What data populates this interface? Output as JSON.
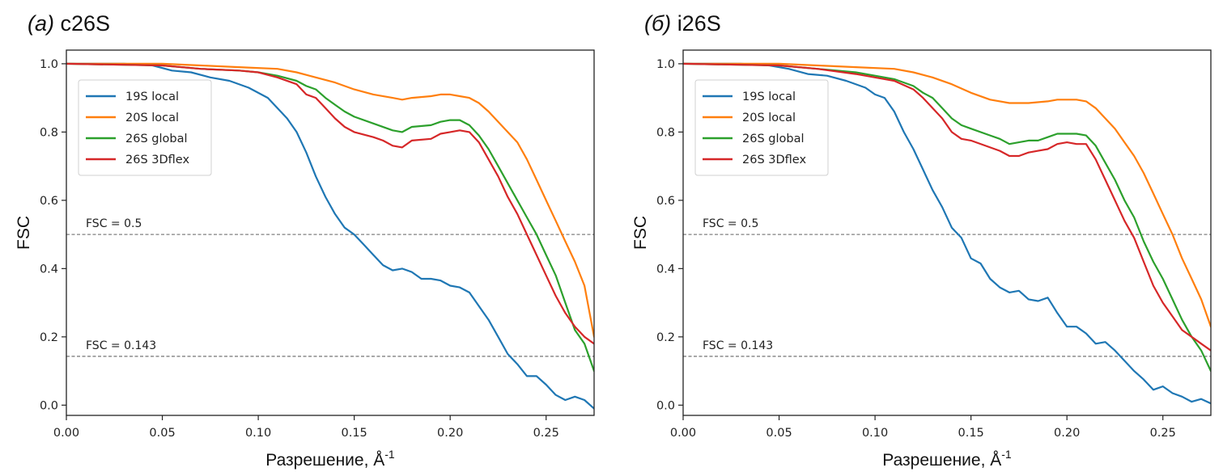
{
  "chart_data": [
    {
      "type": "line",
      "panel_letter": "(a)",
      "title": "c26S",
      "xlabel": "Разрешение, Å",
      "xlabel_superscript": "-1",
      "ylabel": "FSC",
      "xlim": [
        0,
        0.275
      ],
      "ylim": [
        -0.03,
        1.04
      ],
      "xticks": [
        "0.00",
        "0.05",
        "0.10",
        "0.15",
        "0.20",
        "0.25"
      ],
      "xtick_values": [
        0,
        0.05,
        0.1,
        0.15,
        0.2,
        0.25
      ],
      "yticks": [
        "0.0",
        "0.2",
        "0.4",
        "0.6",
        "0.8",
        "1.0"
      ],
      "ytick_values": [
        0,
        0.2,
        0.4,
        0.6,
        0.8,
        1.0
      ],
      "grid": false,
      "legend_position": "top-left",
      "reference_lines": [
        {
          "y": 0.5,
          "label": "FSC = 0.5"
        },
        {
          "y": 0.143,
          "label": "FSC = 0.143"
        }
      ],
      "series": [
        {
          "name": "19S local",
          "color": "#1f77b4",
          "x": [
            0,
            0.03,
            0.045,
            0.055,
            0.065,
            0.075,
            0.085,
            0.095,
            0.105,
            0.115,
            0.12,
            0.125,
            0.13,
            0.135,
            0.14,
            0.145,
            0.15,
            0.155,
            0.16,
            0.165,
            0.17,
            0.175,
            0.18,
            0.185,
            0.19,
            0.195,
            0.2,
            0.205,
            0.21,
            0.215,
            0.22,
            0.225,
            0.23,
            0.235,
            0.24,
            0.245,
            0.25,
            0.255,
            0.26,
            0.265,
            0.27,
            0.275
          ],
          "y": [
            1.0,
            1.0,
            0.995,
            0.98,
            0.975,
            0.96,
            0.95,
            0.93,
            0.9,
            0.84,
            0.8,
            0.74,
            0.67,
            0.61,
            0.56,
            0.52,
            0.5,
            0.47,
            0.44,
            0.41,
            0.395,
            0.4,
            0.39,
            0.37,
            0.37,
            0.365,
            0.35,
            0.345,
            0.33,
            0.29,
            0.25,
            0.2,
            0.15,
            0.12,
            0.085,
            0.085,
            0.06,
            0.03,
            0.015,
            0.025,
            0.015,
            -0.01
          ]
        },
        {
          "name": "20S local",
          "color": "#ff7f0e",
          "x": [
            0,
            0.05,
            0.07,
            0.09,
            0.11,
            0.12,
            0.13,
            0.14,
            0.15,
            0.16,
            0.17,
            0.175,
            0.18,
            0.19,
            0.195,
            0.2,
            0.205,
            0.21,
            0.215,
            0.22,
            0.225,
            0.23,
            0.235,
            0.24,
            0.245,
            0.25,
            0.255,
            0.26,
            0.265,
            0.27,
            0.275
          ],
          "y": [
            1.0,
            1.0,
            0.995,
            0.99,
            0.985,
            0.975,
            0.96,
            0.945,
            0.925,
            0.91,
            0.9,
            0.895,
            0.9,
            0.905,
            0.91,
            0.91,
            0.905,
            0.9,
            0.885,
            0.86,
            0.83,
            0.8,
            0.77,
            0.72,
            0.66,
            0.6,
            0.54,
            0.48,
            0.42,
            0.35,
            0.2
          ]
        },
        {
          "name": "26S global",
          "color": "#2ca02c",
          "x": [
            0,
            0.05,
            0.07,
            0.09,
            0.1,
            0.11,
            0.12,
            0.125,
            0.13,
            0.135,
            0.14,
            0.145,
            0.15,
            0.16,
            0.17,
            0.175,
            0.18,
            0.19,
            0.195,
            0.2,
            0.205,
            0.21,
            0.215,
            0.22,
            0.225,
            0.23,
            0.235,
            0.24,
            0.245,
            0.25,
            0.255,
            0.26,
            0.265,
            0.27,
            0.275
          ],
          "y": [
            1.0,
            0.995,
            0.985,
            0.98,
            0.975,
            0.965,
            0.95,
            0.935,
            0.925,
            0.9,
            0.88,
            0.86,
            0.845,
            0.825,
            0.805,
            0.8,
            0.815,
            0.82,
            0.83,
            0.835,
            0.835,
            0.82,
            0.79,
            0.75,
            0.7,
            0.65,
            0.6,
            0.55,
            0.5,
            0.44,
            0.38,
            0.3,
            0.22,
            0.18,
            0.1
          ]
        },
        {
          "name": "26S 3Dflex",
          "color": "#d62728",
          "x": [
            0,
            0.05,
            0.07,
            0.09,
            0.1,
            0.11,
            0.12,
            0.125,
            0.13,
            0.135,
            0.14,
            0.145,
            0.15,
            0.16,
            0.165,
            0.17,
            0.175,
            0.18,
            0.19,
            0.195,
            0.2,
            0.205,
            0.21,
            0.215,
            0.22,
            0.225,
            0.23,
            0.235,
            0.24,
            0.245,
            0.25,
            0.255,
            0.26,
            0.265,
            0.27,
            0.275
          ],
          "y": [
            1.0,
            0.995,
            0.985,
            0.98,
            0.975,
            0.96,
            0.94,
            0.91,
            0.9,
            0.87,
            0.84,
            0.815,
            0.8,
            0.785,
            0.775,
            0.76,
            0.755,
            0.775,
            0.78,
            0.795,
            0.8,
            0.805,
            0.8,
            0.77,
            0.72,
            0.67,
            0.61,
            0.56,
            0.5,
            0.44,
            0.38,
            0.32,
            0.27,
            0.23,
            0.2,
            0.18
          ]
        }
      ]
    },
    {
      "type": "line",
      "panel_letter": "(б)",
      "title": "i26S",
      "xlabel": "Разрешение, Å",
      "xlabel_superscript": "-1",
      "ylabel": "FSC",
      "xlim": [
        0,
        0.275
      ],
      "ylim": [
        -0.03,
        1.04
      ],
      "xticks": [
        "0.00",
        "0.05",
        "0.10",
        "0.15",
        "0.20",
        "0.25"
      ],
      "xtick_values": [
        0,
        0.05,
        0.1,
        0.15,
        0.2,
        0.25
      ],
      "yticks": [
        "0.0",
        "0.2",
        "0.4",
        "0.6",
        "0.8",
        "1.0"
      ],
      "ytick_values": [
        0,
        0.2,
        0.4,
        0.6,
        0.8,
        1.0
      ],
      "grid": false,
      "legend_position": "top-left",
      "reference_lines": [
        {
          "y": 0.5,
          "label": "FSC = 0.5"
        },
        {
          "y": 0.143,
          "label": "FSC = 0.143"
        }
      ],
      "series": [
        {
          "name": "19S local",
          "color": "#1f77b4",
          "x": [
            0,
            0.03,
            0.045,
            0.055,
            0.065,
            0.075,
            0.085,
            0.095,
            0.1,
            0.105,
            0.11,
            0.115,
            0.12,
            0.125,
            0.13,
            0.135,
            0.14,
            0.145,
            0.15,
            0.155,
            0.16,
            0.165,
            0.17,
            0.175,
            0.18,
            0.185,
            0.19,
            0.195,
            0.2,
            0.205,
            0.21,
            0.215,
            0.22,
            0.225,
            0.23,
            0.235,
            0.24,
            0.245,
            0.25,
            0.255,
            0.26,
            0.265,
            0.27,
            0.275
          ],
          "y": [
            1.0,
            1.0,
            0.995,
            0.985,
            0.97,
            0.965,
            0.95,
            0.93,
            0.91,
            0.9,
            0.86,
            0.8,
            0.75,
            0.69,
            0.63,
            0.58,
            0.52,
            0.49,
            0.43,
            0.415,
            0.37,
            0.345,
            0.33,
            0.335,
            0.31,
            0.305,
            0.315,
            0.27,
            0.23,
            0.23,
            0.21,
            0.18,
            0.185,
            0.16,
            0.13,
            0.1,
            0.075,
            0.045,
            0.055,
            0.035,
            0.025,
            0.01,
            0.018,
            0.005
          ]
        },
        {
          "name": "20S local",
          "color": "#ff7f0e",
          "x": [
            0,
            0.05,
            0.07,
            0.09,
            0.11,
            0.12,
            0.13,
            0.14,
            0.15,
            0.16,
            0.17,
            0.175,
            0.18,
            0.19,
            0.195,
            0.2,
            0.205,
            0.21,
            0.215,
            0.22,
            0.225,
            0.23,
            0.235,
            0.24,
            0.245,
            0.25,
            0.255,
            0.26,
            0.265,
            0.27,
            0.275
          ],
          "y": [
            1.0,
            1.0,
            0.995,
            0.99,
            0.985,
            0.975,
            0.96,
            0.94,
            0.915,
            0.895,
            0.885,
            0.885,
            0.885,
            0.89,
            0.895,
            0.895,
            0.895,
            0.89,
            0.87,
            0.84,
            0.81,
            0.77,
            0.73,
            0.68,
            0.62,
            0.56,
            0.5,
            0.43,
            0.37,
            0.31,
            0.23
          ]
        },
        {
          "name": "26S global",
          "color": "#2ca02c",
          "x": [
            0,
            0.05,
            0.07,
            0.09,
            0.1,
            0.11,
            0.12,
            0.125,
            0.13,
            0.135,
            0.14,
            0.145,
            0.15,
            0.16,
            0.165,
            0.17,
            0.175,
            0.18,
            0.185,
            0.19,
            0.195,
            0.2,
            0.205,
            0.21,
            0.215,
            0.22,
            0.225,
            0.23,
            0.235,
            0.24,
            0.245,
            0.25,
            0.255,
            0.26,
            0.265,
            0.27,
            0.275
          ],
          "y": [
            1.0,
            0.995,
            0.985,
            0.975,
            0.965,
            0.955,
            0.935,
            0.915,
            0.9,
            0.87,
            0.84,
            0.82,
            0.81,
            0.79,
            0.78,
            0.765,
            0.77,
            0.775,
            0.775,
            0.785,
            0.795,
            0.795,
            0.795,
            0.79,
            0.76,
            0.71,
            0.66,
            0.6,
            0.55,
            0.48,
            0.42,
            0.37,
            0.31,
            0.25,
            0.2,
            0.16,
            0.1
          ]
        },
        {
          "name": "26S 3Dflex",
          "color": "#d62728",
          "x": [
            0,
            0.05,
            0.07,
            0.09,
            0.1,
            0.11,
            0.12,
            0.125,
            0.13,
            0.135,
            0.14,
            0.145,
            0.15,
            0.16,
            0.165,
            0.17,
            0.175,
            0.18,
            0.185,
            0.19,
            0.195,
            0.2,
            0.205,
            0.21,
            0.215,
            0.22,
            0.225,
            0.23,
            0.235,
            0.24,
            0.245,
            0.25,
            0.255,
            0.26,
            0.265,
            0.27,
            0.275
          ],
          "y": [
            1.0,
            0.995,
            0.985,
            0.97,
            0.96,
            0.95,
            0.925,
            0.9,
            0.87,
            0.84,
            0.8,
            0.78,
            0.775,
            0.755,
            0.745,
            0.73,
            0.73,
            0.74,
            0.745,
            0.75,
            0.765,
            0.77,
            0.765,
            0.765,
            0.72,
            0.66,
            0.6,
            0.54,
            0.49,
            0.42,
            0.35,
            0.3,
            0.26,
            0.22,
            0.2,
            0.18,
            0.16
          ]
        }
      ]
    }
  ]
}
